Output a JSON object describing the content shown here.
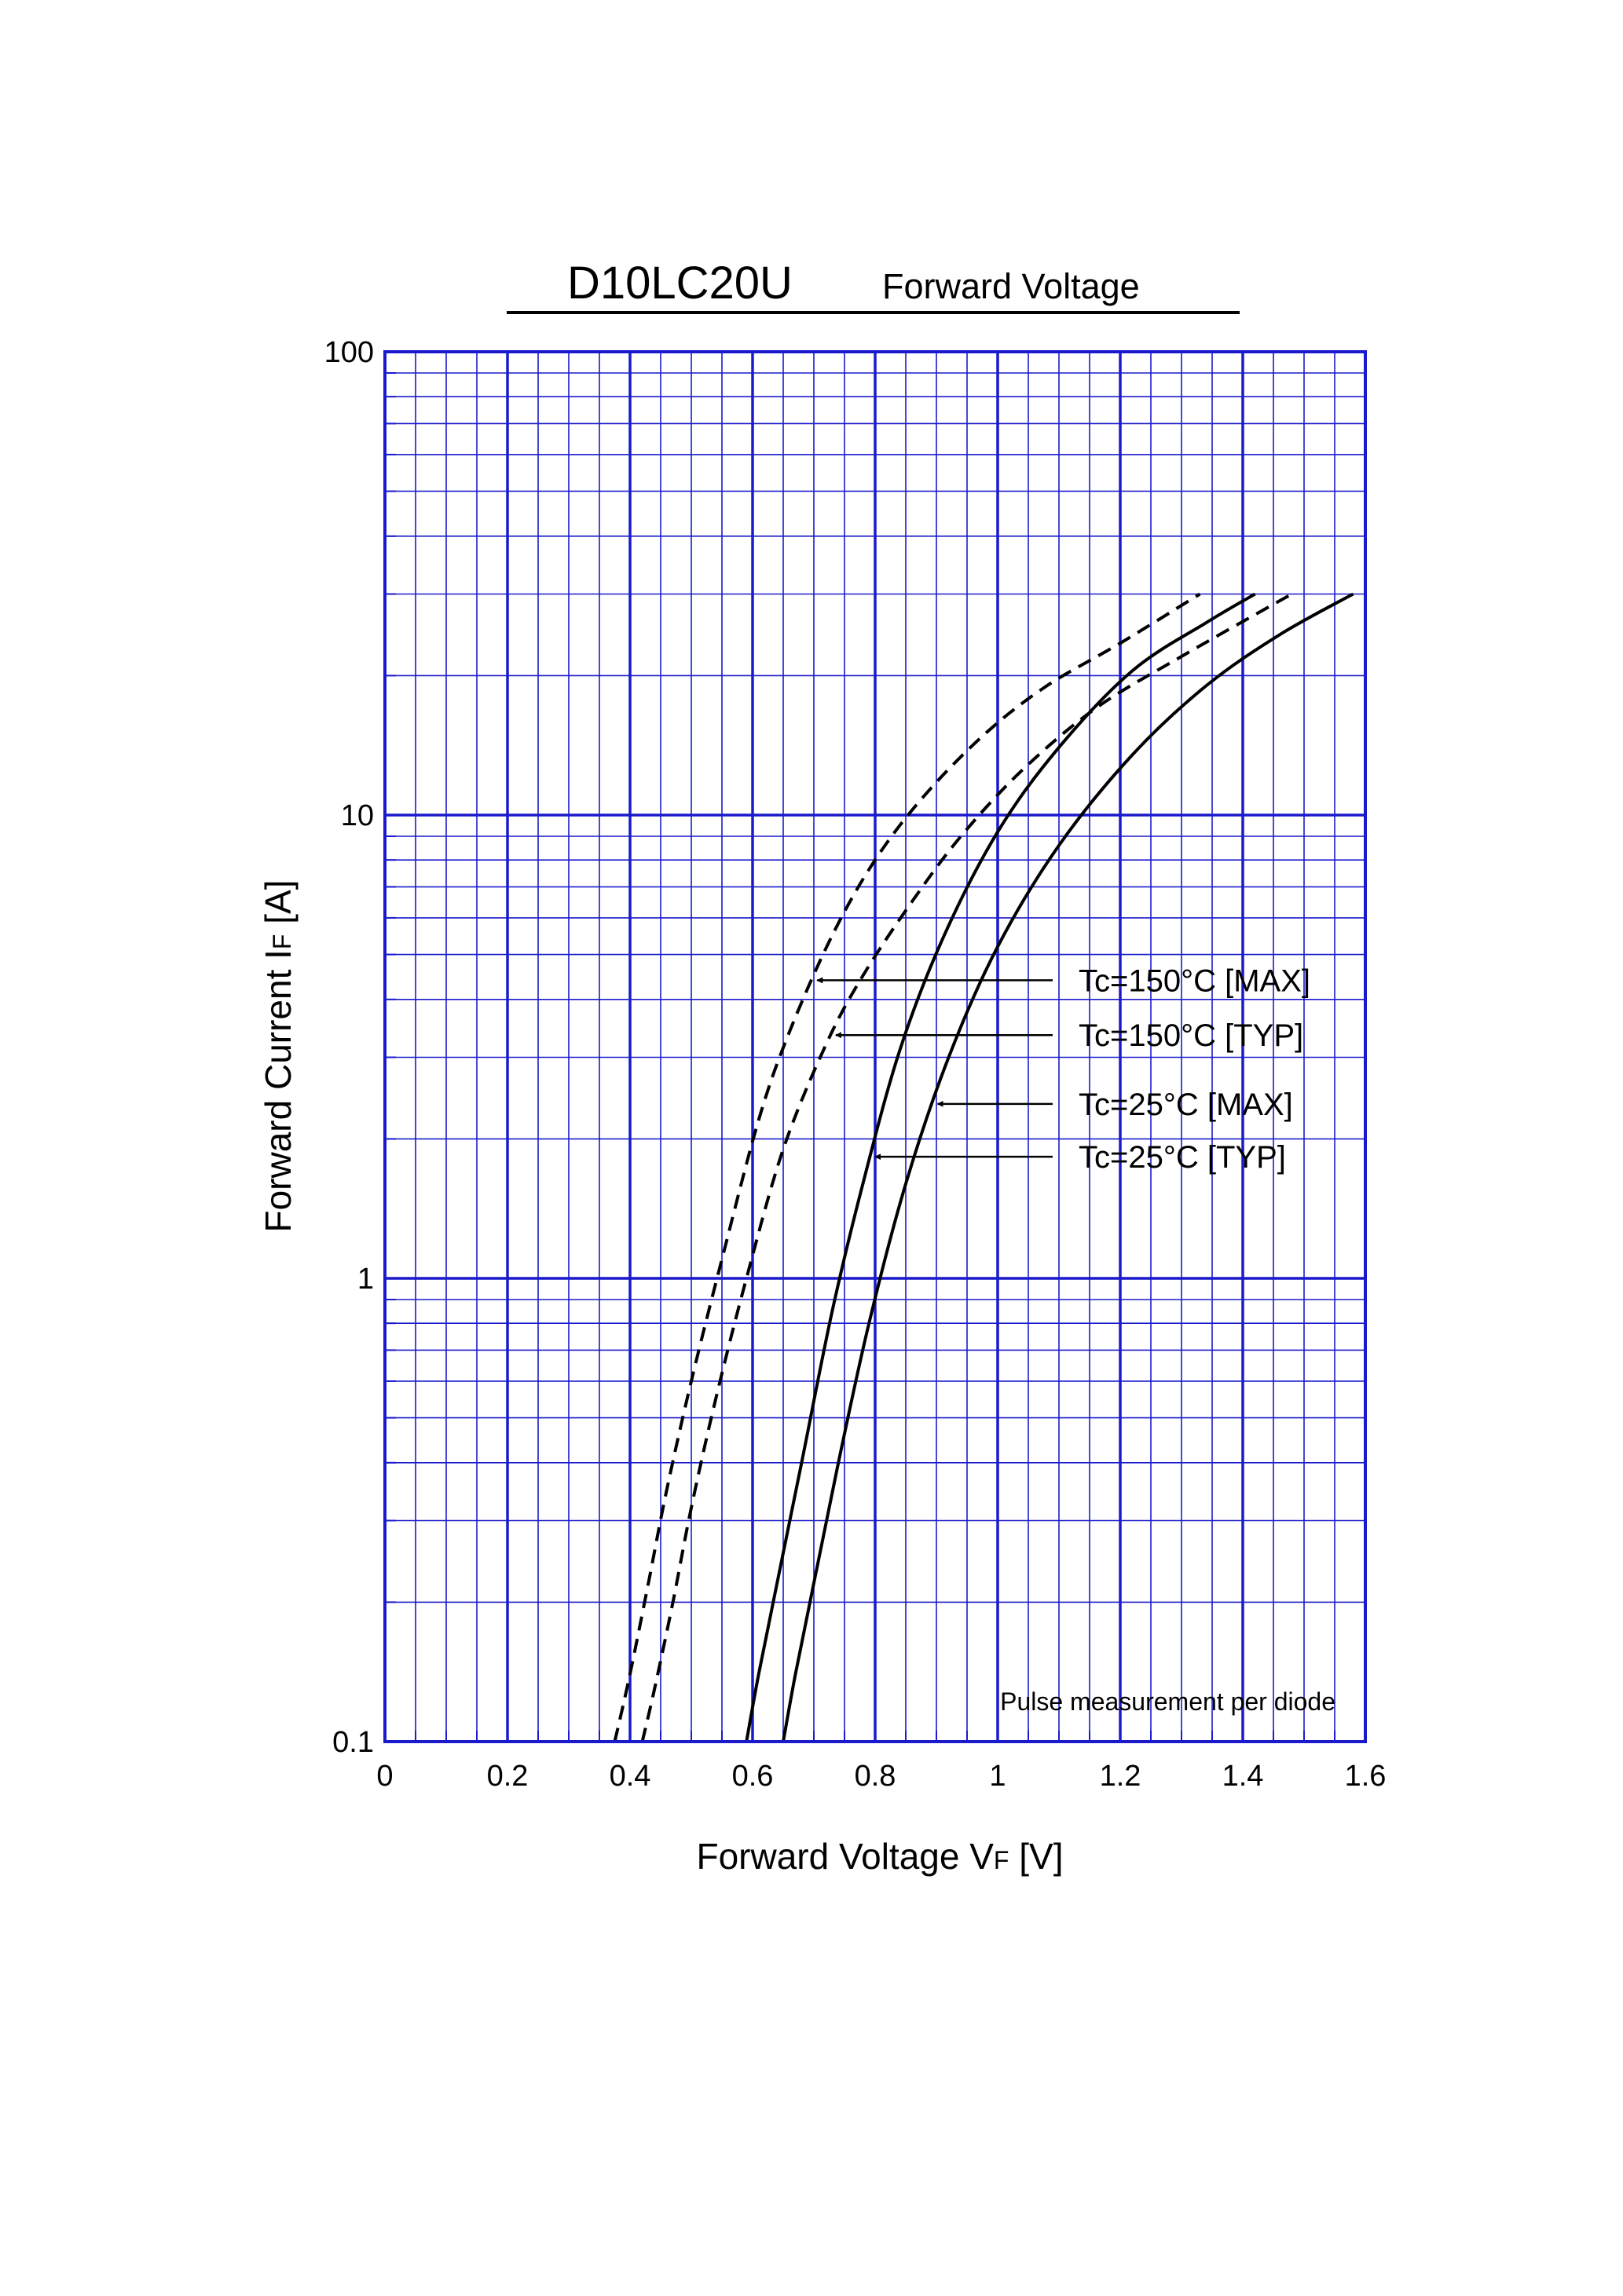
{
  "chart_data": {
    "type": "line",
    "title": "D10LC20U",
    "subtitle": "Forward  Voltage",
    "xlabel": {
      "main": "Forward Voltage  V",
      "sub": "F",
      "unit": "  [V]"
    },
    "ylabel": {
      "main": "Forward Current  I",
      "sub": "F",
      "unit": "  [A]"
    },
    "xlim": [
      0,
      1.6
    ],
    "ylim": [
      0.1,
      100
    ],
    "yscale": "log",
    "grid": true,
    "x_ticks": [
      "0",
      "0.2",
      "0.4",
      "0.6",
      "0.8",
      "1",
      "1.2",
      "1.4",
      "1.6"
    ],
    "y_ticks": [
      "0.1",
      "1",
      "10",
      "100"
    ],
    "note": "Pulse  measurement  per  diode",
    "colors": {
      "grid": "#1a1acc",
      "curve": "#000000",
      "background": "#ffffff"
    },
    "series": [
      {
        "name": "Tc=150°C [TYP]",
        "style": "dashed",
        "x": [
          0.375,
          0.4,
          0.43,
          0.46,
          0.5,
          0.55,
          0.61,
          0.66,
          0.73,
          0.8,
          0.88,
          0.98,
          1.08,
          1.2,
          1.33
        ],
        "y": [
          0.1,
          0.14,
          0.22,
          0.35,
          0.6,
          1.1,
          2.2,
          3.4,
          5.5,
          8.0,
          11.0,
          15.0,
          19.0,
          23.5,
          30.0
        ]
      },
      {
        "name": "Tc=150°C [MAX]",
        "style": "dashed",
        "x": [
          0.42,
          0.44,
          0.47,
          0.5,
          0.54,
          0.59,
          0.65,
          0.72,
          0.78,
          0.86,
          0.94,
          1.04,
          1.16,
          1.3,
          1.48
        ],
        "y": [
          0.1,
          0.13,
          0.2,
          0.32,
          0.55,
          1.0,
          1.9,
          3.2,
          4.5,
          6.5,
          9.0,
          12.5,
          17.0,
          22.0,
          30.0
        ]
      },
      {
        "name": "Tc=25°C [TYP]",
        "style": "solid",
        "x": [
          0.59,
          0.61,
          0.64,
          0.68,
          0.73,
          0.78,
          0.84,
          0.91,
          1.0,
          1.1,
          1.22,
          1.34,
          1.42
        ],
        "y": [
          0.1,
          0.14,
          0.22,
          0.4,
          0.85,
          1.6,
          3.1,
          5.4,
          9.2,
          14.0,
          20.5,
          26.0,
          30.0
        ]
      },
      {
        "name": "Tc=25°C [MAX]",
        "style": "solid",
        "x": [
          0.65,
          0.67,
          0.7,
          0.74,
          0.79,
          0.85,
          0.92,
          1.0,
          1.1,
          1.22,
          1.34,
          1.46,
          1.58
        ],
        "y": [
          0.1,
          0.14,
          0.22,
          0.4,
          0.8,
          1.6,
          3.0,
          5.2,
          8.6,
          13.5,
          19.0,
          24.5,
          30.0
        ]
      }
    ],
    "annotations": [
      {
        "id": "ann-150-max",
        "text": "Tc=150°C [MAX]",
        "points_to_series": "Tc=150°C [TYP]",
        "at_y": 4.4
      },
      {
        "id": "ann-150-typ",
        "text": "Tc=150°C [TYP]",
        "points_to_series": "Tc=150°C [MAX]",
        "at_y": 3.35
      },
      {
        "id": "ann-25-max",
        "text": "Tc=25°C [MAX]",
        "points_to_series": "Tc=25°C [MAX]",
        "at_y": 2.38
      },
      {
        "id": "ann-25-typ",
        "text": "Tc=25°C [TYP]",
        "points_to_series": "Tc=25°C [TYP]",
        "at_y": 1.83
      }
    ]
  }
}
